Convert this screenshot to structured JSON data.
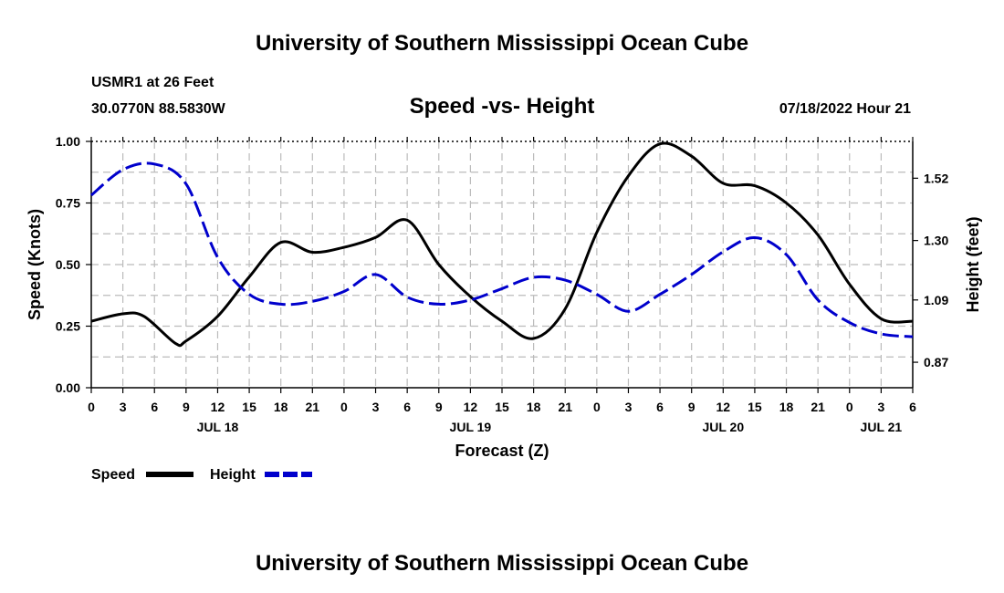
{
  "header": {
    "title": "University of Southern Mississippi Ocean Cube",
    "station": "USMR1 at 26 Feet",
    "coords": "30.0770N  88.5830W",
    "subtitle": "Speed -vs- Height",
    "datetime": "07/18/2022 Hour 21"
  },
  "footer": {
    "title": "University of Southern Mississippi Ocean Cube"
  },
  "chart_data": {
    "type": "line",
    "title": "Speed -vs- Height",
    "xlabel": "Forecast (Z)",
    "ylabel_left": "Speed (Knots)",
    "ylabel_right": "Height (feet)",
    "xlim_hours": [
      0,
      78
    ],
    "ylim_left": [
      0,
      1.0
    ],
    "ylim_right": [
      0.78,
      1.65
    ],
    "grid": true,
    "x_tick_labels": [
      "0",
      "3",
      "6",
      "9",
      "12",
      "15",
      "18",
      "21",
      "0",
      "3",
      "6",
      "9",
      "12",
      "15",
      "18",
      "21",
      "0",
      "3",
      "6",
      "9",
      "12",
      "15",
      "18",
      "21",
      "0",
      "3",
      "6"
    ],
    "date_labels": [
      {
        "label": "JUL 18",
        "hour": 12
      },
      {
        "label": "JUL 19",
        "hour": 36
      },
      {
        "label": "JUL 20",
        "hour": 60
      },
      {
        "label": "JUL 21",
        "hour": 75
      }
    ],
    "y_left_ticks": [
      "0.00",
      "0.25",
      "0.50",
      "0.75",
      "1.00"
    ],
    "y_right_ticks": [
      "0.87",
      "1.09",
      "1.30",
      "1.52"
    ],
    "series": [
      {
        "name": "Speed",
        "axis": "left",
        "color": "#000000",
        "style": "solid",
        "points": [
          [
            0,
            0.27
          ],
          [
            3,
            0.3
          ],
          [
            5,
            0.29
          ],
          [
            8,
            0.18
          ],
          [
            9,
            0.19
          ],
          [
            12,
            0.29
          ],
          [
            15,
            0.45
          ],
          [
            18,
            0.59
          ],
          [
            21,
            0.55
          ],
          [
            24,
            0.57
          ],
          [
            27,
            0.61
          ],
          [
            30,
            0.68
          ],
          [
            33,
            0.5
          ],
          [
            36,
            0.37
          ],
          [
            39,
            0.27
          ],
          [
            42,
            0.2
          ],
          [
            45,
            0.32
          ],
          [
            48,
            0.63
          ],
          [
            51,
            0.86
          ],
          [
            54,
            0.99
          ],
          [
            57,
            0.94
          ],
          [
            60,
            0.83
          ],
          [
            63,
            0.82
          ],
          [
            66,
            0.75
          ],
          [
            69,
            0.62
          ],
          [
            72,
            0.42
          ],
          [
            75,
            0.28
          ],
          [
            78,
            0.27
          ]
        ]
      },
      {
        "name": "Height",
        "axis": "right",
        "color": "#0000cc",
        "style": "dashed",
        "points": [
          [
            0,
            1.46
          ],
          [
            3,
            1.55
          ],
          [
            6,
            1.57
          ],
          [
            9,
            1.5
          ],
          [
            12,
            1.24
          ],
          [
            15,
            1.11
          ],
          [
            18,
            1.075
          ],
          [
            21,
            1.085
          ],
          [
            24,
            1.12
          ],
          [
            27,
            1.18
          ],
          [
            30,
            1.1
          ],
          [
            33,
            1.075
          ],
          [
            36,
            1.09
          ],
          [
            39,
            1.13
          ],
          [
            42,
            1.17
          ],
          [
            45,
            1.16
          ],
          [
            48,
            1.11
          ],
          [
            51,
            1.05
          ],
          [
            54,
            1.11
          ],
          [
            57,
            1.18
          ],
          [
            60,
            1.26
          ],
          [
            63,
            1.31
          ],
          [
            66,
            1.25
          ],
          [
            69,
            1.09
          ],
          [
            72,
            1.01
          ],
          [
            75,
            0.97
          ],
          [
            78,
            0.96
          ]
        ]
      }
    ],
    "legend": [
      {
        "label": "Speed",
        "color": "#000000",
        "style": "solid"
      },
      {
        "label": "Height",
        "color": "#0000cc",
        "style": "dashed"
      }
    ],
    "legend_position": "bottom-left"
  }
}
